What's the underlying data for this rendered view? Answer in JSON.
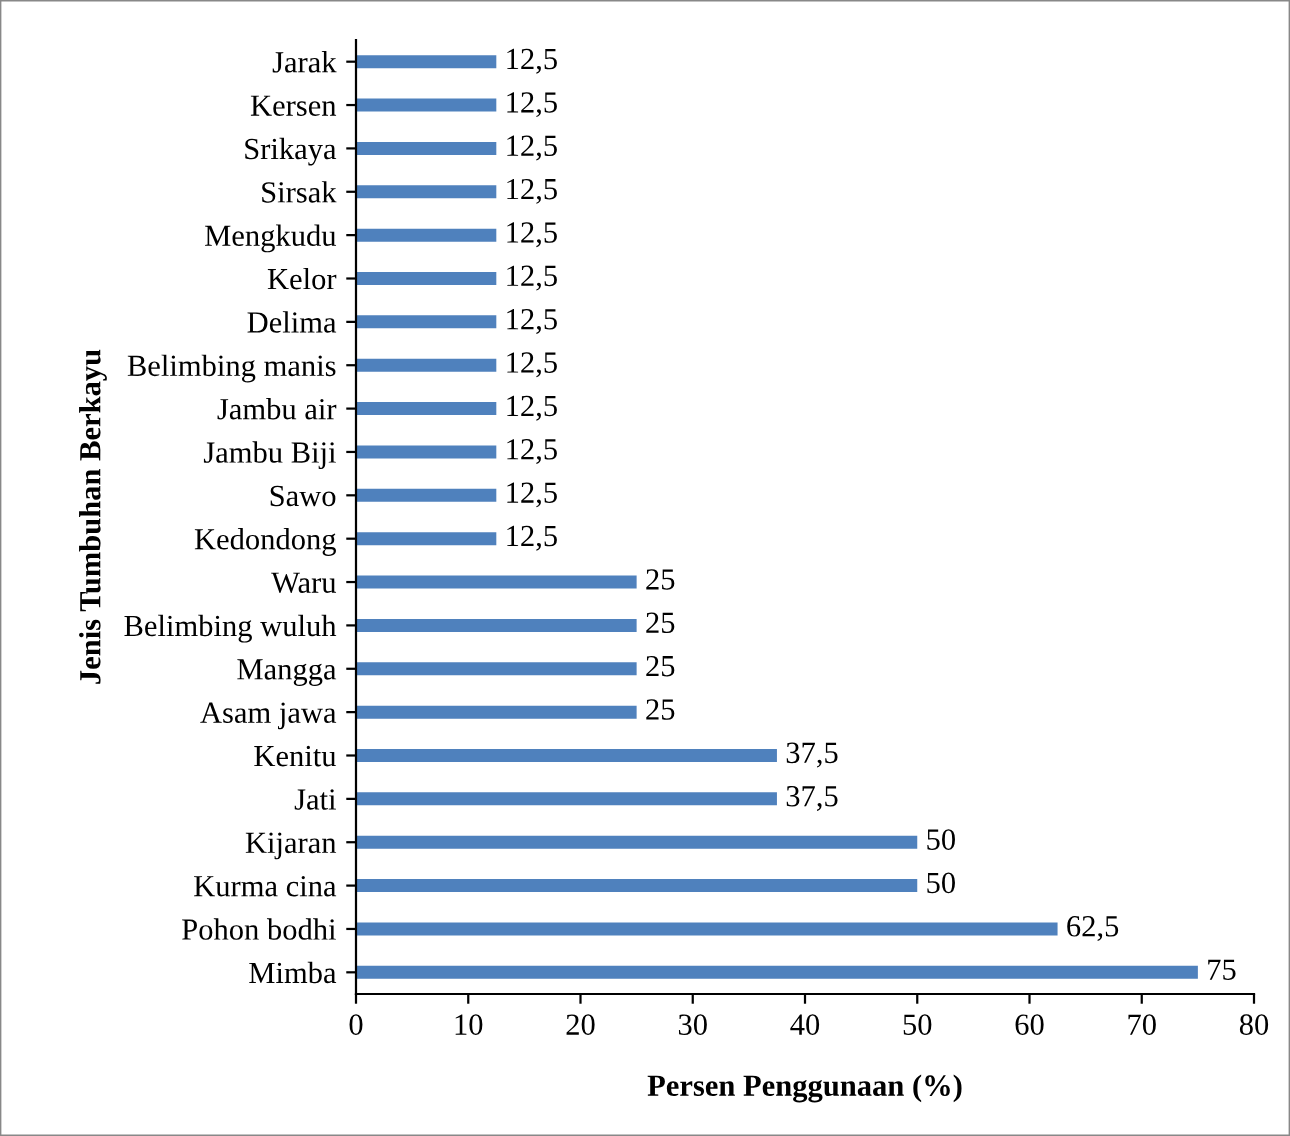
{
  "chart_data": {
    "type": "bar",
    "orientation": "horizontal",
    "xlabel": "Persen Penggunaan (%)",
    "ylabel": "Jenis Tumbuhan Berkayu",
    "categories": [
      "Jarak",
      "Kersen",
      "Srikaya",
      "Sirsak",
      "Mengkudu",
      "Kelor",
      "Delima",
      "Belimbing manis",
      "Jambu air",
      "Jambu Biji",
      "Sawo",
      "Kedondong",
      "Waru",
      "Belimbing wuluh",
      "Mangga",
      "Asam jawa",
      "Kenitu",
      "Jati",
      "Kijaran",
      "Kurma cina",
      "Pohon bodhi",
      "Mimba"
    ],
    "values": [
      12.5,
      12.5,
      12.5,
      12.5,
      12.5,
      12.5,
      12.5,
      12.5,
      12.5,
      12.5,
      12.5,
      12.5,
      25,
      25,
      25,
      25,
      37.5,
      37.5,
      50,
      50,
      62.5,
      75
    ],
    "value_labels": [
      "12,5",
      "12,5",
      "12,5",
      "12,5",
      "12,5",
      "12,5",
      "12,5",
      "12,5",
      "12,5",
      "12,5",
      "12,5",
      "12,5",
      "25",
      "25",
      "25",
      "25",
      "37,5",
      "37,5",
      "50",
      "50",
      "62,5",
      "75"
    ],
    "color": "#4f81bd",
    "xlim": [
      0,
      80
    ],
    "xticks": [
      0,
      10,
      20,
      30,
      40,
      50,
      60,
      70,
      80
    ],
    "grid": false
  }
}
